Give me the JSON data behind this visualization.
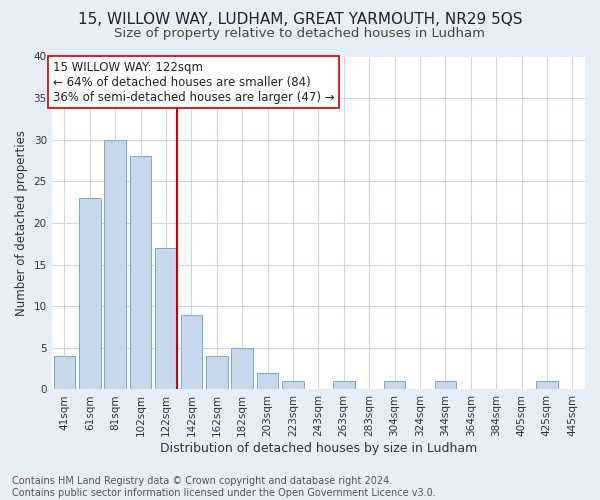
{
  "title": "15, WILLOW WAY, LUDHAM, GREAT YARMOUTH, NR29 5QS",
  "subtitle": "Size of property relative to detached houses in Ludham",
  "xlabel": "Distribution of detached houses by size in Ludham",
  "ylabel": "Number of detached properties",
  "bar_labels": [
    "41sqm",
    "61sqm",
    "81sqm",
    "102sqm",
    "122sqm",
    "142sqm",
    "162sqm",
    "182sqm",
    "203sqm",
    "223sqm",
    "243sqm",
    "263sqm",
    "283sqm",
    "304sqm",
    "324sqm",
    "344sqm",
    "364sqm",
    "384sqm",
    "405sqm",
    "425sqm",
    "445sqm"
  ],
  "bar_values": [
    4,
    23,
    30,
    28,
    17,
    9,
    4,
    5,
    2,
    1,
    0,
    1,
    0,
    1,
    0,
    1,
    0,
    0,
    0,
    1,
    0
  ],
  "bar_color": "#c8d8ec",
  "bar_edge_color": "#7aa8d0",
  "vline_color": "#cc0000",
  "vline_bar_index": 4,
  "annotation_text1": "15 WILLOW WAY: 122sqm",
  "annotation_text2": "← 64% of detached houses are smaller (84)",
  "annotation_text3": "36% of semi-detached houses are larger (47) →",
  "ylim": [
    0,
    40
  ],
  "yticks": [
    0,
    5,
    10,
    15,
    20,
    25,
    30,
    35,
    40
  ],
  "footer_text": "Contains HM Land Registry data © Crown copyright and database right 2024.\nContains public sector information licensed under the Open Government Licence v3.0.",
  "background_color": "#e8eef8",
  "plot_background": "#ffffff",
  "grid_color": "#c8d4e8",
  "title_fontsize": 11,
  "subtitle_fontsize": 9.5,
  "xlabel_fontsize": 9,
  "ylabel_fontsize": 8.5,
  "tick_fontsize": 7.5,
  "annotation_fontsize": 8.5,
  "footer_fontsize": 7
}
